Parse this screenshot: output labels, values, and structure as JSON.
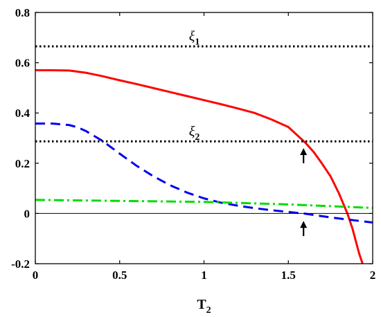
{
  "chart_data": {
    "type": "line",
    "title": "",
    "xlabel": "T",
    "xlabel_sub": "2",
    "ylabel": "",
    "xlim": [
      0,
      2
    ],
    "ylim": [
      -0.2,
      0.8
    ],
    "x_ticks": [
      "0",
      "0.5",
      "1",
      "1.5",
      "2"
    ],
    "y_ticks": [
      "-0.2",
      "0",
      "0.2",
      "0.4",
      "0.6",
      "0.8"
    ],
    "grid": false,
    "legend": "none",
    "series": [
      {
        "style": "solid",
        "color": "#ff0000",
        "x": [
          0,
          0.1,
          0.2,
          0.3,
          0.4,
          0.5,
          0.6,
          0.7,
          0.8,
          0.9,
          1.0,
          1.1,
          1.2,
          1.3,
          1.4,
          1.5,
          1.6,
          1.65,
          1.7,
          1.75,
          1.8,
          1.85,
          1.88,
          1.9,
          1.92,
          1.94
        ],
        "y": [
          0.57,
          0.57,
          0.569,
          0.56,
          0.546,
          0.53,
          0.515,
          0.499,
          0.483,
          0.467,
          0.451,
          0.435,
          0.418,
          0.4,
          0.374,
          0.344,
          0.282,
          0.245,
          0.198,
          0.148,
          0.08,
          0.0,
          -0.06,
          -0.11,
          -0.16,
          -0.2
        ]
      },
      {
        "style": "dashed",
        "color": "#0000ee",
        "x": [
          0,
          0.1,
          0.2,
          0.25,
          0.3,
          0.4,
          0.5,
          0.6,
          0.7,
          0.8,
          0.9,
          1.0,
          1.1,
          1.2,
          1.3,
          1.4,
          1.5,
          1.6,
          1.7,
          1.8,
          1.9,
          2.0
        ],
        "y": [
          0.358,
          0.358,
          0.352,
          0.343,
          0.328,
          0.288,
          0.238,
          0.19,
          0.148,
          0.112,
          0.083,
          0.06,
          0.043,
          0.031,
          0.021,
          0.013,
          0.006,
          -0.001,
          -0.011,
          -0.02,
          -0.028,
          -0.036
        ]
      },
      {
        "style": "dashdot",
        "color": "#00dd00",
        "x": [
          0,
          1.0,
          1.5,
          2.0
        ],
        "y": [
          0.054,
          0.046,
          0.036,
          0.022
        ]
      },
      {
        "style": "dotted",
        "color": "#000000",
        "x": [
          0,
          2
        ],
        "y": [
          0.665,
          0.665
        ]
      },
      {
        "style": "dotted",
        "color": "#000000",
        "x": [
          0,
          2
        ],
        "y": [
          0.287,
          0.287
        ]
      },
      {
        "style": "solid-thin",
        "color": "#000000",
        "x": [
          0,
          2
        ],
        "y": [
          0,
          0
        ]
      }
    ],
    "annotations": [
      {
        "text": "ξ",
        "sub": "1",
        "x": 0.96,
        "y": 0.7
      },
      {
        "text": "ξ",
        "sub": "2",
        "x": 0.96,
        "y": 0.32
      }
    ],
    "arrows": [
      {
        "x": 1.59,
        "y_from": 0.2,
        "y_to": 0.26
      },
      {
        "x": 1.59,
        "y_from": -0.09,
        "y_to": -0.03
      }
    ]
  }
}
